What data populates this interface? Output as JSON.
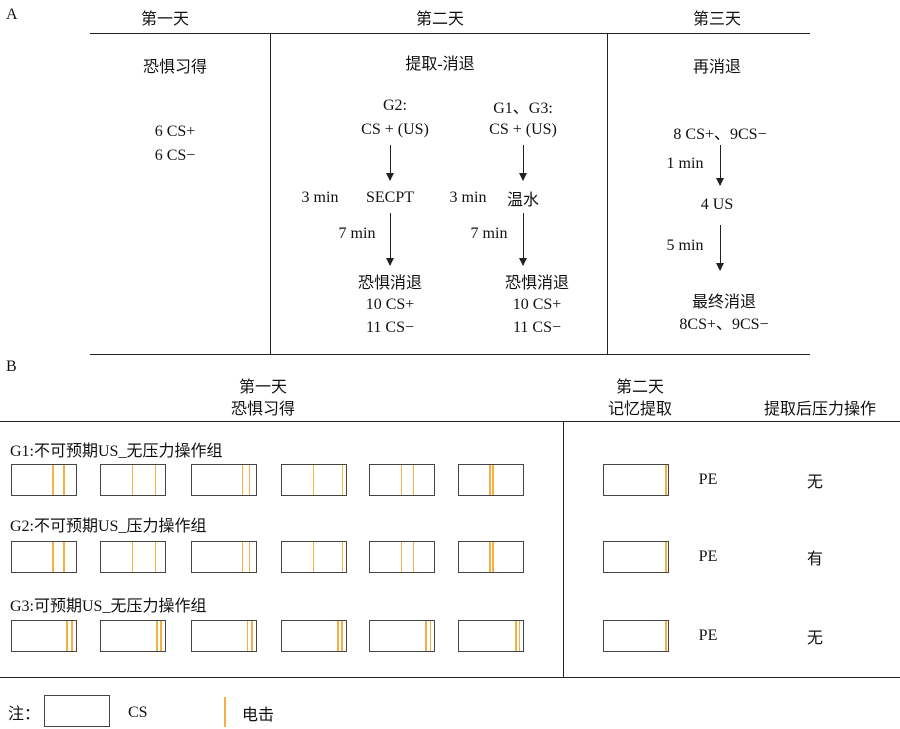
{
  "shock_color": "#f5b041",
  "panel_a": {
    "label": "A",
    "days": [
      "第一天",
      "第二天",
      "第三天"
    ],
    "day1": {
      "title": "恐惧习得",
      "lines": [
        "6 CS+",
        "6 CS−"
      ]
    },
    "day2": {
      "title": "提取-消退",
      "left": {
        "group": "G2:",
        "cue": "CS + (US)",
        "delay1": "3 min",
        "manipulation": "SECPT",
        "delay2": "7 min",
        "phase": "恐惧消退",
        "trials": [
          "10 CS+",
          "11 CS−"
        ]
      },
      "right": {
        "group": "G1、G3:",
        "cue": "CS + (US)",
        "delay1": "3 min",
        "manipulation": "温水",
        "delay2": "7 min",
        "phase": "恐惧消退",
        "trials": [
          "10 CS+",
          "11 CS−"
        ]
      }
    },
    "day3": {
      "title": "再消退",
      "trials1": "8 CS+、9CS−",
      "delay1": "1 min",
      "us": "4 US",
      "delay2": "5 min",
      "phase": "最终消退",
      "trials2": "8CS+、9CS−"
    }
  },
  "panel_b": {
    "label": "B",
    "col1": [
      "第一天",
      "恐惧习得"
    ],
    "col2": [
      "第二天",
      "记忆提取"
    ],
    "col3": "提取后压力操作",
    "groups": [
      {
        "name": "G1:不可预期US_无压力操作组",
        "shocks": [
          [
            0.64,
            0.81
          ],
          [
            0.49,
            0.85
          ],
          [
            0.79,
            0.9
          ],
          [
            0.49,
            0.95
          ],
          [
            0.49,
            0.68
          ],
          [
            0.48,
            0.53
          ]
        ],
        "retrieval_shock": 0.97,
        "retrieval": "PE",
        "stress": "无"
      },
      {
        "name": "G2:不可预期US_压力操作组",
        "shocks": [
          [
            0.64,
            0.81
          ],
          [
            0.49,
            0.85
          ],
          [
            0.79,
            0.9
          ],
          [
            0.49,
            0.95
          ],
          [
            0.49,
            0.68
          ],
          [
            0.48,
            0.53
          ]
        ],
        "retrieval_shock": 0.97,
        "retrieval": "PE",
        "stress": "有"
      },
      {
        "name": "G3:可预期US_无压力操作组",
        "shocks": [
          [
            0.86,
            0.94
          ],
          [
            0.875,
            0.94
          ],
          [
            0.87,
            0.94
          ],
          [
            0.88,
            0.94
          ],
          [
            0.88,
            0.95
          ],
          [
            0.89,
            0.95
          ]
        ],
        "retrieval_shock": 0.97,
        "retrieval": "PE",
        "stress": "无"
      }
    ]
  },
  "legend": {
    "note": "注：",
    "cs": "CS",
    "shock": "电击"
  }
}
